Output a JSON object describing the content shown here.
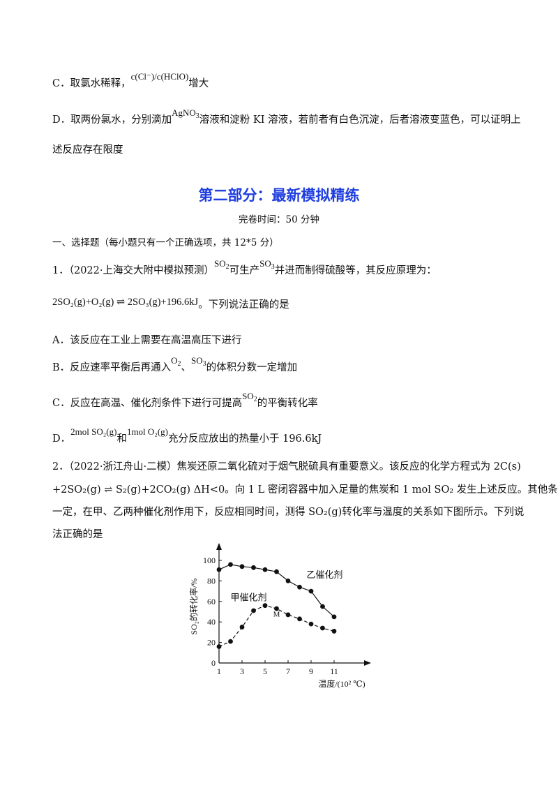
{
  "option_c_top": {
    "label": "C．取氯水稀释，",
    "ratio": "c(Cl⁻)/c(HClO)",
    "suffix": "增大"
  },
  "option_d_top": {
    "label": "D．取两份氯水，分别滴加",
    "reagent": "AgNO",
    "reagent_sub": "3",
    "text": "溶液和淀粉 KI 溶液，若前者有白色沉淀，后者溶液变蓝色，可以证明上",
    "continuation": "述反应存在限度"
  },
  "section": {
    "title": "第二部分：最新模拟精练",
    "time": "完卷时间：50 分钟",
    "part": "一、选择题（每小题只有一个正确选项，共 12*5 分）"
  },
  "q1": {
    "number_source": "1．（2022·上海交大附中模拟预测）",
    "so2": "SO",
    "so2_sub": "2",
    "mid": "可生产",
    "so3": "SO",
    "so3_sub": "3",
    "tail": "并进而制得硫酸等，其反应原理为：",
    "equation": "2SO₂(g)+O₂(g) ⇌ 2SO₃(g)+196.6kJ",
    "equation_tail": "。下列说法正确的是",
    "a": "A．该反应在工业上需要在高温高压下进行",
    "b_pre": "B．反应速率平衡后再通入",
    "b_o2": "O",
    "b_o2_sub": "2",
    "b_sep": "、",
    "b_so3": "SO",
    "b_so3_sub": "3",
    "b_post": "的体积分数一定增加",
    "c_pre": "C．反应在高温、催化剂条件下进行可提高",
    "c_so2": "SO",
    "c_so2_sub": "2",
    "c_post": "的平衡转化率",
    "d_label": "D．",
    "d_f1": "2mol SO₂(g)",
    "d_and": "和",
    "d_f2": "1mol O₂(g)",
    "d_post": "充分反应放出的热量小于 196.6kJ"
  },
  "q2": {
    "line1": "2．（2022·浙江舟山·二模）焦炭还原二氧化硫对于烟气脱硫具有重要意义。该反应的化学方程式为 2C(s)",
    "line2": "+2SO₂(g) ⇌ S₂(g)+2CO₂(g) ΔH<0。向 1 L 密闭容器中加入足量的焦炭和 1 mol SO₂ 发生上述反应。其他条件",
    "line3": "一定，在甲、乙两种催化剂作用下，反应相同时间，测得 SO₂(g)转化率与温度的关系如下图所示。下列说",
    "line4": "法正确的是"
  },
  "chart_data": {
    "type": "line",
    "xlabel": "温度/(10² ℃)",
    "ylabel": "SO₂的转化率/%",
    "xlim": [
      1,
      12
    ],
    "ylim": [
      0,
      110
    ],
    "x_ticks": [
      "1",
      "3",
      "5",
      "7",
      "9",
      "11"
    ],
    "y_ticks": [
      "0",
      "20",
      "40",
      "60",
      "80",
      "100"
    ],
    "series": [
      {
        "name": "乙催化剂",
        "x": [
          1,
          2,
          3,
          4,
          5,
          6,
          7,
          8,
          9,
          10,
          11
        ],
        "values": [
          91,
          96,
          94,
          93,
          91,
          89,
          80,
          74,
          70,
          55,
          45
        ],
        "style": "solid"
      },
      {
        "name": "甲催化剂",
        "x": [
          1,
          2,
          3,
          4,
          5,
          6,
          7,
          8,
          9,
          10,
          11
        ],
        "values": [
          16,
          21,
          35,
          51,
          56,
          53,
          47,
          43,
          38,
          34,
          31
        ],
        "style": "dashed"
      }
    ],
    "annotations": [
      {
        "label": "M",
        "x": 6,
        "y": 56
      }
    ],
    "colors": {
      "line": "#111111"
    }
  }
}
